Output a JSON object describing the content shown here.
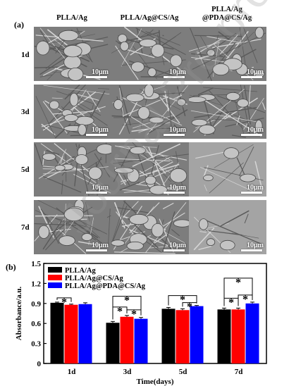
{
  "figure": {
    "panel_a_label": "(a)",
    "panel_b_label": "(b)",
    "columns": [
      {
        "line1": "PLLA/Ag",
        "line2": ""
      },
      {
        "line1": "PLLA/Ag@CS/Ag",
        "line2": ""
      },
      {
        "line1": "PLLA/Ag",
        "line2": "@PDA@CS/Ag"
      }
    ],
    "rows": [
      "1d",
      "3d",
      "5d",
      "7d"
    ],
    "scale_bar": "10μm",
    "watermark": "Journal Pre-proof"
  },
  "chart_data": {
    "type": "bar",
    "categories": [
      "1d",
      "3d",
      "5d",
      "7d"
    ],
    "xlabel": "Time(days)",
    "ylabel": "Absorbance/a.u.",
    "ylim": [
      0,
      1.5
    ],
    "yticks": [
      0,
      0.3,
      0.6,
      0.9,
      1.2,
      1.5
    ],
    "ytick_labels": [
      "0",
      "0.3",
      "0.6",
      "0.9",
      "1.2",
      "1.5"
    ],
    "series": [
      {
        "name": "PLLA/Ag",
        "color": "#000000",
        "values": [
          0.91,
          0.61,
          0.82,
          0.81
        ],
        "errors": [
          0.01,
          0.02,
          0.02,
          0.02
        ]
      },
      {
        "name": "PLLA/Ag@CS/Ag",
        "color": "#ff0000",
        "values": [
          0.88,
          0.7,
          0.8,
          0.81
        ],
        "errors": [
          0.01,
          0.02,
          0.02,
          0.02
        ]
      },
      {
        "name": "PLLA/Ag@PDA@CS/Ag",
        "color": "#0000ff",
        "values": [
          0.89,
          0.67,
          0.86,
          0.9
        ],
        "errors": [
          0.02,
          0.02,
          0.01,
          0.02
        ]
      }
    ],
    "significance_marker": "*",
    "legend_position": "top-left"
  }
}
